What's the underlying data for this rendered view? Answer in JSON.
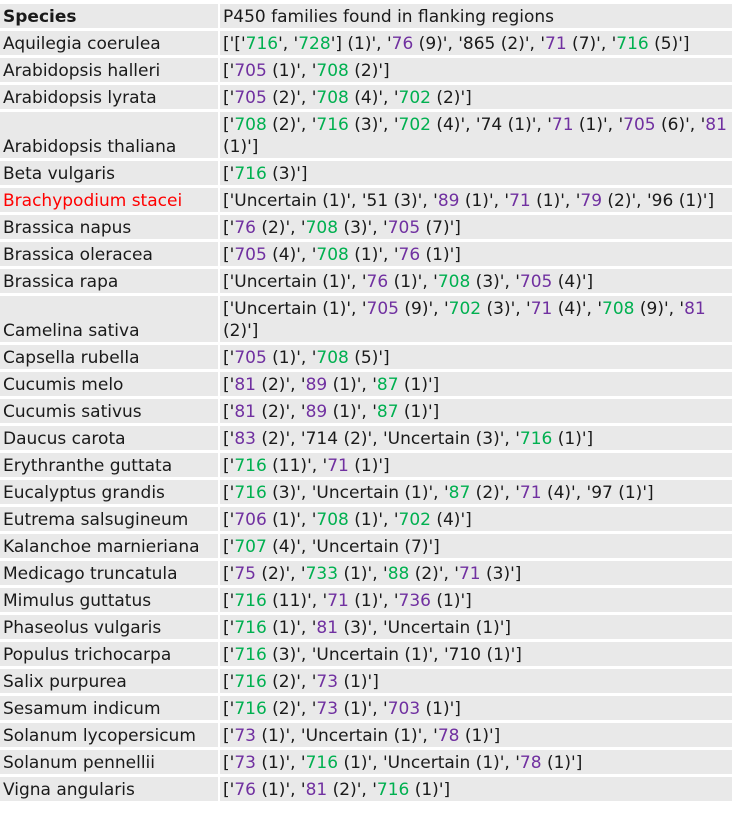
{
  "header": {
    "species": "Species",
    "families": "P450 families found in flanking regions"
  },
  "colors": {
    "purple": "#7030a0",
    "green": "#00b050",
    "black": "#1a1a1a",
    "highlight_red": "#ff0000"
  },
  "rows": [
    {
      "species": "Aquilegia coerulea",
      "tall": false,
      "segs": [
        [
          "['['",
          "k"
        ],
        [
          "716",
          "g"
        ],
        [
          "', '",
          "k"
        ],
        [
          "728",
          "g"
        ],
        [
          "'] (1)', '",
          "k"
        ],
        [
          "76",
          "p"
        ],
        [
          " (9)', '865 (2)', '",
          "k"
        ],
        [
          "71",
          "p"
        ],
        [
          " (7)', '",
          "k"
        ],
        [
          "716",
          "g"
        ],
        [
          " (5)']",
          "k"
        ]
      ]
    },
    {
      "species": "Arabidopsis halleri",
      "tall": false,
      "segs": [
        [
          "['",
          "k"
        ],
        [
          "705",
          "p"
        ],
        [
          " (1)', '",
          "k"
        ],
        [
          "708",
          "g"
        ],
        [
          " (2)']",
          "k"
        ]
      ]
    },
    {
      "species": "Arabidopsis lyrata",
      "tall": false,
      "segs": [
        [
          "['",
          "k"
        ],
        [
          "705",
          "p"
        ],
        [
          " (2)', '",
          "k"
        ],
        [
          "708",
          "g"
        ],
        [
          " (4)', '",
          "k"
        ],
        [
          "702",
          "g"
        ],
        [
          " (2)']",
          "k"
        ]
      ]
    },
    {
      "species": "Arabidopsis thaliana",
      "tall": true,
      "segs": [
        [
          "['",
          "k"
        ],
        [
          "708",
          "g"
        ],
        [
          " (2)', '",
          "k"
        ],
        [
          "716",
          "g"
        ],
        [
          " (3)', '",
          "k"
        ],
        [
          "702",
          "g"
        ],
        [
          " (4)', '74 (1)', '",
          "k"
        ],
        [
          "71",
          "p"
        ],
        [
          " (1)', '",
          "k"
        ],
        [
          "705",
          "p"
        ],
        [
          " (6)', '",
          "k"
        ],
        [
          "81",
          "p"
        ],
        [
          " (1)']",
          "k"
        ]
      ]
    },
    {
      "species": "Beta vulgaris",
      "tall": false,
      "segs": [
        [
          "['",
          "k"
        ],
        [
          "716",
          "g"
        ],
        [
          " (3)']",
          "k"
        ]
      ]
    },
    {
      "species": "Brachypodium stacei",
      "red": true,
      "tall": false,
      "segs": [
        [
          "['Uncertain (1)', '51 (3)', '",
          "k"
        ],
        [
          "89",
          "p"
        ],
        [
          " (1)', '",
          "k"
        ],
        [
          "71",
          "p"
        ],
        [
          " (1)', '",
          "k"
        ],
        [
          "79",
          "p"
        ],
        [
          " (2)', '96 (1)']",
          "k"
        ]
      ]
    },
    {
      "species": "Brassica napus",
      "tall": false,
      "segs": [
        [
          "['",
          "k"
        ],
        [
          "76",
          "p"
        ],
        [
          " (2)', '",
          "k"
        ],
        [
          "708",
          "g"
        ],
        [
          " (3)', '",
          "k"
        ],
        [
          "705",
          "p"
        ],
        [
          " (7)']",
          "k"
        ]
      ]
    },
    {
      "species": "Brassica oleracea",
      "tall": false,
      "segs": [
        [
          "['",
          "k"
        ],
        [
          "705",
          "p"
        ],
        [
          " (4)', '",
          "k"
        ],
        [
          "708",
          "g"
        ],
        [
          " (1)', '",
          "k"
        ],
        [
          "76",
          "p"
        ],
        [
          " (1)']",
          "k"
        ]
      ]
    },
    {
      "species": "Brassica rapa",
      "tall": false,
      "segs": [
        [
          "['Uncertain (1)', '",
          "k"
        ],
        [
          "76",
          "p"
        ],
        [
          " (1)', '",
          "k"
        ],
        [
          "708",
          "g"
        ],
        [
          " (3)', '",
          "k"
        ],
        [
          "705",
          "p"
        ],
        [
          " (4)']",
          "k"
        ]
      ]
    },
    {
      "species": "Camelina sativa",
      "tall": true,
      "segs": [
        [
          "['Uncertain (1)', '",
          "k"
        ],
        [
          "705",
          "p"
        ],
        [
          " (9)', '",
          "k"
        ],
        [
          "702",
          "g"
        ],
        [
          " (3)', '",
          "k"
        ],
        [
          "71",
          "p"
        ],
        [
          " (4)', '",
          "k"
        ],
        [
          "708",
          "g"
        ],
        [
          " (9)', '",
          "k"
        ],
        [
          "81",
          "p"
        ],
        [
          " (2)']",
          "k"
        ]
      ]
    },
    {
      "species": "Capsella rubella",
      "tall": false,
      "segs": [
        [
          "['",
          "k"
        ],
        [
          "705",
          "p"
        ],
        [
          " (1)', '",
          "k"
        ],
        [
          "708",
          "g"
        ],
        [
          " (5)']",
          "k"
        ]
      ]
    },
    {
      "species": "Cucumis melo",
      "tall": false,
      "segs": [
        [
          "['",
          "k"
        ],
        [
          "81",
          "p"
        ],
        [
          " (2)', '",
          "k"
        ],
        [
          "89",
          "p"
        ],
        [
          " (1)', '",
          "k"
        ],
        [
          "87",
          "g"
        ],
        [
          " (1)']",
          "k"
        ]
      ]
    },
    {
      "species": "Cucumis sativus",
      "tall": false,
      "segs": [
        [
          "['",
          "k"
        ],
        [
          "81",
          "p"
        ],
        [
          " (2)', '",
          "k"
        ],
        [
          "89",
          "p"
        ],
        [
          " (1)', '",
          "k"
        ],
        [
          "87",
          "g"
        ],
        [
          " (1)']",
          "k"
        ]
      ]
    },
    {
      "species": "Daucus carota",
      "tall": false,
      "segs": [
        [
          "['",
          "k"
        ],
        [
          "83",
          "p"
        ],
        [
          " (2)', '714 (2)', 'Uncertain (3)', '",
          "k"
        ],
        [
          "716",
          "g"
        ],
        [
          " (1)']",
          "k"
        ]
      ]
    },
    {
      "species": "Erythranthe guttata",
      "tall": false,
      "segs": [
        [
          "['",
          "k"
        ],
        [
          "716",
          "g"
        ],
        [
          " (11)', '",
          "k"
        ],
        [
          "71",
          "p"
        ],
        [
          " (1)']",
          "k"
        ]
      ]
    },
    {
      "species": "Eucalyptus grandis",
      "tall": false,
      "segs": [
        [
          "['",
          "k"
        ],
        [
          "716",
          "g"
        ],
        [
          " (3)', 'Uncertain (1)', '",
          "k"
        ],
        [
          "87",
          "g"
        ],
        [
          " (2)', '",
          "k"
        ],
        [
          "71",
          "p"
        ],
        [
          " (4)', '97 (1)']",
          "k"
        ]
      ]
    },
    {
      "species": "Eutrema salsugineum",
      "tall": false,
      "segs": [
        [
          "['",
          "k"
        ],
        [
          "706",
          "p"
        ],
        [
          " (1)', '",
          "k"
        ],
        [
          "708",
          "g"
        ],
        [
          " (1)', '",
          "k"
        ],
        [
          "702",
          "g"
        ],
        [
          " (4)']",
          "k"
        ]
      ]
    },
    {
      "species": "Kalanchoe marnieriana",
      "tall": false,
      "segs": [
        [
          "['",
          "k"
        ],
        [
          "707",
          "g"
        ],
        [
          " (4)', 'Uncertain (7)']",
          "k"
        ]
      ]
    },
    {
      "species": "Medicago truncatula",
      "tall": false,
      "segs": [
        [
          "['",
          "k"
        ],
        [
          "75",
          "p"
        ],
        [
          " (2)', '",
          "k"
        ],
        [
          "733",
          "g"
        ],
        [
          " (1)', '",
          "k"
        ],
        [
          "88",
          "g"
        ],
        [
          " (2)', '",
          "k"
        ],
        [
          "71",
          "p"
        ],
        [
          " (3)']",
          "k"
        ]
      ]
    },
    {
      "species": "Mimulus guttatus",
      "tall": false,
      "segs": [
        [
          "['",
          "k"
        ],
        [
          "716",
          "g"
        ],
        [
          " (11)', '",
          "k"
        ],
        [
          "71",
          "p"
        ],
        [
          " (1)', '",
          "k"
        ],
        [
          "736",
          "p"
        ],
        [
          " (1)']",
          "k"
        ]
      ]
    },
    {
      "species": "Phaseolus vulgaris",
      "tall": false,
      "segs": [
        [
          "['",
          "k"
        ],
        [
          "716",
          "g"
        ],
        [
          " (1)', '",
          "k"
        ],
        [
          "81",
          "p"
        ],
        [
          " (3)', 'Uncertain (1)']",
          "k"
        ]
      ]
    },
    {
      "species": "Populus trichocarpa",
      "tall": false,
      "segs": [
        [
          "['",
          "k"
        ],
        [
          "716",
          "g"
        ],
        [
          " (3)', 'Uncertain (1)', '710 (1)']",
          "k"
        ]
      ]
    },
    {
      "species": "Salix purpurea",
      "tall": false,
      "segs": [
        [
          "['",
          "k"
        ],
        [
          "716",
          "g"
        ],
        [
          " (2)', '",
          "k"
        ],
        [
          "73",
          "p"
        ],
        [
          " (1)']",
          "k"
        ]
      ]
    },
    {
      "species": "Sesamum indicum",
      "tall": false,
      "segs": [
        [
          "['",
          "k"
        ],
        [
          "716",
          "g"
        ],
        [
          " (2)', '",
          "k"
        ],
        [
          "73",
          "p"
        ],
        [
          " (1)', '",
          "k"
        ],
        [
          "703",
          "p"
        ],
        [
          " (1)']",
          "k"
        ]
      ]
    },
    {
      "species": "Solanum lycopersicum",
      "tall": false,
      "segs": [
        [
          "['",
          "k"
        ],
        [
          "73",
          "p"
        ],
        [
          " (1)', 'Uncertain (1)', '",
          "k"
        ],
        [
          "78",
          "p"
        ],
        [
          " (1)']",
          "k"
        ]
      ]
    },
    {
      "species": "Solanum pennellii",
      "tall": false,
      "segs": [
        [
          "['",
          "k"
        ],
        [
          "73",
          "p"
        ],
        [
          " (1)', '",
          "k"
        ],
        [
          "716",
          "g"
        ],
        [
          " (1)', 'Uncertain (1)', '",
          "k"
        ],
        [
          "78",
          "p"
        ],
        [
          " (1)']",
          "k"
        ]
      ]
    },
    {
      "species": "Vigna angularis",
      "tall": false,
      "segs": [
        [
          "['",
          "k"
        ],
        [
          "76",
          "p"
        ],
        [
          " (1)', '",
          "k"
        ],
        [
          "81",
          "p"
        ],
        [
          " (2)', '",
          "k"
        ],
        [
          "716",
          "g"
        ],
        [
          " (1)']",
          "k"
        ]
      ]
    }
  ]
}
